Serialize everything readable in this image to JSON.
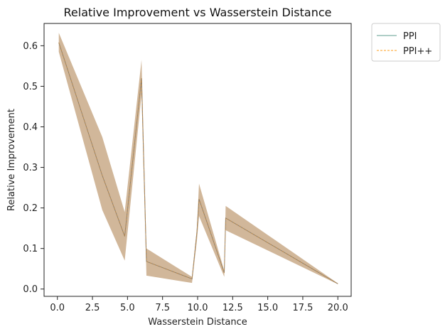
{
  "chart_data": {
    "type": "line",
    "title": "Relative Improvement vs Wasserstein Distance",
    "xlabel": "Wasserstein Distance",
    "ylabel": "Relative Improvement",
    "xlim": [
      -0.95,
      20.95
    ],
    "ylim": [
      -0.018,
      0.655
    ],
    "xticks": [
      "0.0",
      "2.5",
      "5.0",
      "7.5",
      "10.0",
      "12.5",
      "15.0",
      "17.5",
      "20.0"
    ],
    "xtick_values": [
      0,
      2.5,
      5,
      7.5,
      10,
      12.5,
      15,
      17.5,
      20
    ],
    "yticks": [
      "0.0",
      "0.1",
      "0.2",
      "0.3",
      "0.4",
      "0.5",
      "0.6"
    ],
    "ytick_values": [
      0,
      0.1,
      0.2,
      0.3,
      0.4,
      0.5,
      0.6
    ],
    "legend_position": "outside-top-right",
    "grid": false,
    "x": [
      0.1,
      3.2,
      4.8,
      6.0,
      6.35,
      9.6,
      9.95,
      10.1,
      11.9,
      12.0,
      20.0
    ],
    "series": [
      {
        "name": "PPI",
        "color": "#5f9e8f",
        "line_style": "solid",
        "values": [
          0.608,
          0.28,
          0.13,
          0.52,
          0.068,
          0.025,
          0.14,
          0.222,
          0.04,
          0.175,
          0.013
        ]
      },
      {
        "name": "PPI++",
        "color": "#ff9f1c",
        "line_style": "dashed",
        "values": [
          0.608,
          0.28,
          0.13,
          0.52,
          0.068,
          0.025,
          0.14,
          0.222,
          0.04,
          0.175,
          0.013
        ]
      }
    ],
    "confidence_band": {
      "color": "#c9aa88",
      "lower": [
        0.585,
        0.195,
        0.07,
        0.48,
        0.033,
        0.015,
        0.12,
        0.18,
        0.03,
        0.145,
        0.012
      ],
      "upper": [
        0.632,
        0.375,
        0.19,
        0.565,
        0.1,
        0.03,
        0.15,
        0.26,
        0.045,
        0.205,
        0.014
      ]
    },
    "mean_line_color": "#8b7f70"
  }
}
